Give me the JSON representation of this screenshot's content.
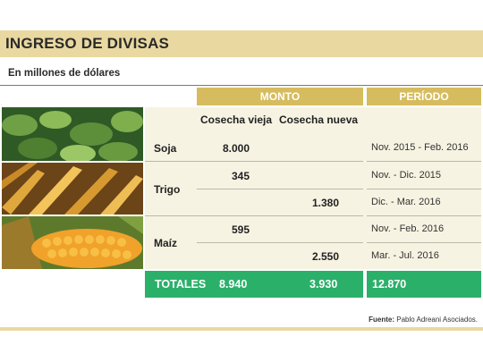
{
  "header": {
    "title": "INGRESO DE DIVISAS",
    "subtitle": "En millones de dólares"
  },
  "columns": {
    "monto": "MONTO",
    "periodo": "PERÍODO",
    "cosecha_vieja": "Cosecha vieja",
    "cosecha_nueva": "Cosecha nueva"
  },
  "rows": {
    "soja": {
      "label": "Soja",
      "vieja": "8.000",
      "periodo": "Nov. 2015 - Feb. 2016"
    },
    "trigo": {
      "label": "Trigo",
      "vieja": "345",
      "periodo_vieja": "Nov. - Dic. 2015",
      "nueva": "1.380",
      "periodo_nueva": "Dic. - Mar. 2016"
    },
    "maiz": {
      "label": "Maíz",
      "vieja": "595",
      "periodo_vieja": "Nov. - Feb. 2016",
      "nueva": "2.550",
      "periodo_nueva": "Mar. - Jul. 2016"
    }
  },
  "totals": {
    "label": "TOTALES",
    "vieja": "8.940",
    "nueva": "3.930",
    "total": "12.870"
  },
  "footer": {
    "source_label": "Fuente:",
    "source_text": "Pablo Adreani Asociados."
  },
  "colors": {
    "accent_band": "#e9d8a0",
    "header_gold": "#d6bc5e",
    "totals_green": "#2bb06a"
  }
}
